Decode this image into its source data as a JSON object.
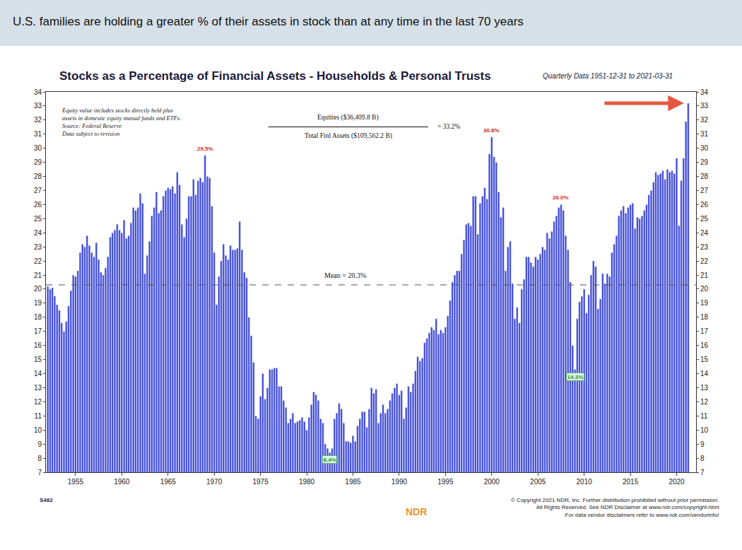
{
  "banner": "U.S. families are holding a greater % of their assets in stock than at any time in the last 70 years",
  "chart_data": {
    "type": "bar",
    "title": "Stocks as a Percentage of Financial Assets - Households & Personal Trusts",
    "subtitle": "Quarterly Data 1951-12-31 to 2021-03-31",
    "notes": [
      "Equity value includes stocks directly held plus",
      "assets in domestic equity mutual funds and ETFs.",
      "Source: Federal Reserve",
      "Data subject to revision"
    ],
    "fraction": {
      "numerator": "Equities ($36,409.8 B)",
      "denominator": "Total Finl Assets ($109,562.2 B)",
      "result": "= 33.2%"
    },
    "mean": {
      "value": 20.3,
      "label": "Mean = 20.3%"
    },
    "annotations": [
      {
        "text": "29.5%",
        "x": 1969.0,
        "y": 29.5,
        "color": "#d0281c"
      },
      {
        "text": "8.4%",
        "x": 1982.5,
        "y": 8.4,
        "color": "#1a9a3a"
      },
      {
        "text": "30.8%",
        "x": 2000.0,
        "y": 30.8,
        "color": "#d0281c"
      },
      {
        "text": "26.0%",
        "x": 2007.5,
        "y": 26.0,
        "color": "#d0281c"
      },
      {
        "text": "14.3%",
        "x": 2009.0,
        "y": 14.3,
        "color": "#1a9a3a"
      }
    ],
    "footer": [
      "© Copyright 2021 NDR, Inc. Further distribution prohibited without prior permission.",
      "All Rights Reserved. See NDR Disclaimer at www.ndr.com/copyright.html",
      "For data vendor disclaimers refer to www.ndr.com/vendorinfo/"
    ],
    "chart_id": "S482",
    "logo": "NDR",
    "color": "#3c48d8",
    "grid": false,
    "xlim": [
      1951.8,
      2022.1
    ],
    "xticks": [
      1955,
      1960,
      1965,
      1970,
      1975,
      1980,
      1985,
      1990,
      1995,
      2000,
      2005,
      2010,
      2015,
      2020
    ],
    "ylim": [
      7,
      34
    ],
    "yticks": [
      7,
      8,
      9,
      10,
      11,
      12,
      13,
      14,
      15,
      16,
      17,
      18,
      19,
      20,
      21,
      22,
      23,
      24,
      25,
      26,
      27,
      28,
      29,
      30,
      31,
      32,
      33,
      34
    ],
    "x": [
      1952,
      1952.25,
      1952.5,
      1952.75,
      1953,
      1953.25,
      1953.5,
      1953.75,
      1954,
      1954.25,
      1954.5,
      1954.75,
      1955,
      1955.25,
      1955.5,
      1955.75,
      1956,
      1956.25,
      1956.5,
      1956.75,
      1957,
      1957.25,
      1957.5,
      1957.75,
      1958,
      1958.25,
      1958.5,
      1958.75,
      1959,
      1959.25,
      1959.5,
      1959.75,
      1960,
      1960.25,
      1960.5,
      1960.75,
      1961,
      1961.25,
      1961.5,
      1961.75,
      1962,
      1962.25,
      1962.5,
      1962.75,
      1963,
      1963.25,
      1963.5,
      1963.75,
      1964,
      1964.25,
      1964.5,
      1964.75,
      1965,
      1965.25,
      1965.5,
      1965.75,
      1966,
      1966.25,
      1966.5,
      1966.75,
      1967,
      1967.25,
      1967.5,
      1967.75,
      1968,
      1968.25,
      1968.5,
      1968.75,
      1969,
      1969.25,
      1969.5,
      1969.75,
      1970,
      1970.25,
      1970.5,
      1970.75,
      1971,
      1971.25,
      1971.5,
      1971.75,
      1972,
      1972.25,
      1972.5,
      1972.75,
      1973,
      1973.25,
      1973.5,
      1973.75,
      1974,
      1974.25,
      1974.5,
      1974.75,
      1975,
      1975.25,
      1975.5,
      1975.75,
      1976,
      1976.25,
      1976.5,
      1976.75,
      1977,
      1977.25,
      1977.5,
      1977.75,
      1978,
      1978.25,
      1978.5,
      1978.75,
      1979,
      1979.25,
      1979.5,
      1979.75,
      1980,
      1980.25,
      1980.5,
      1980.75,
      1981,
      1981.25,
      1981.5,
      1981.75,
      1982,
      1982.25,
      1982.5,
      1982.75,
      1983,
      1983.25,
      1983.5,
      1983.75,
      1984,
      1984.25,
      1984.5,
      1984.75,
      1985,
      1985.25,
      1985.5,
      1985.75,
      1986,
      1986.25,
      1986.5,
      1986.75,
      1987,
      1987.25,
      1987.5,
      1987.75,
      1988,
      1988.25,
      1988.5,
      1988.75,
      1989,
      1989.25,
      1989.5,
      1989.75,
      1990,
      1990.25,
      1990.5,
      1990.75,
      1991,
      1991.25,
      1991.5,
      1991.75,
      1992,
      1992.25,
      1992.5,
      1992.75,
      1993,
      1993.25,
      1993.5,
      1993.75,
      1994,
      1994.25,
      1994.5,
      1994.75,
      1995,
      1995.25,
      1995.5,
      1995.75,
      1996,
      1996.25,
      1996.5,
      1996.75,
      1997,
      1997.25,
      1997.5,
      1997.75,
      1998,
      1998.25,
      1998.5,
      1998.75,
      1999,
      1999.25,
      1999.5,
      1999.75,
      2000,
      2000.25,
      2000.5,
      2000.75,
      2001,
      2001.25,
      2001.5,
      2001.75,
      2002,
      2002.25,
      2002.5,
      2002.75,
      2003,
      2003.25,
      2003.5,
      2003.75,
      2004,
      2004.25,
      2004.5,
      2004.75,
      2005,
      2005.25,
      2005.5,
      2005.75,
      2006,
      2006.25,
      2006.5,
      2006.75,
      2007,
      2007.25,
      2007.5,
      2007.75,
      2008,
      2008.25,
      2008.5,
      2008.75,
      2009,
      2009.25,
      2009.5,
      2009.75,
      2010,
      2010.25,
      2010.5,
      2010.75,
      2011,
      2011.25,
      2011.5,
      2011.75,
      2012,
      2012.25,
      2012.5,
      2012.75,
      2013,
      2013.25,
      2013.5,
      2013.75,
      2014,
      2014.25,
      2014.5,
      2014.75,
      2015,
      2015.25,
      2015.5,
      2015.75,
      2016,
      2016.25,
      2016.5,
      2016.75,
      2017,
      2017.25,
      2017.5,
      2017.75,
      2018,
      2018.25,
      2018.5,
      2018.75,
      2019,
      2019.25,
      2019.5,
      2019.75,
      2020,
      2020.25,
      2020.5,
      2020.75,
      2021,
      2021.25
    ],
    "values": [
      20.2,
      20.0,
      20.1,
      19.5,
      18.9,
      18.5,
      17.6,
      17.0,
      17.7,
      18.8,
      19.9,
      21.0,
      20.9,
      21.3,
      22.6,
      23.2,
      23.0,
      23.8,
      23.1,
      22.6,
      22.3,
      23.3,
      22.1,
      21.2,
      21.0,
      21.5,
      22.3,
      23.7,
      24.0,
      24.2,
      24.6,
      24.2,
      24.0,
      24.9,
      23.6,
      23.8,
      24.7,
      25.8,
      25.6,
      25.8,
      26.8,
      26.1,
      21.1,
      22.4,
      23.4,
      25.2,
      25.8,
      26.9,
      25.4,
      25.6,
      26.6,
      27.0,
      27.2,
      27.1,
      27.3,
      26.8,
      28.3,
      27.4,
      24.6,
      23.7,
      25.0,
      26.6,
      26.6,
      27.8,
      26.7,
      27.7,
      27.9,
      27.6,
      29.5,
      28.0,
      27.9,
      25.9,
      22.6,
      18.9,
      20.9,
      22.0,
      23.2,
      22.4,
      22.1,
      23.1,
      22.8,
      22.8,
      22.9,
      24.8,
      22.8,
      21.2,
      20.8,
      18.0,
      16.7,
      14.8,
      11.0,
      10.8,
      12.4,
      14.0,
      12.2,
      13.0,
      14.3,
      14.3,
      14.4,
      14.4,
      13.1,
      13.1,
      12.1,
      11.6,
      10.5,
      10.8,
      11.2,
      10.5,
      10.6,
      10.7,
      10.9,
      10.6,
      10.0,
      10.9,
      11.8,
      12.7,
      12.5,
      12.1,
      10.8,
      10.5,
      9.0,
      8.7,
      8.4,
      8.7,
      10.8,
      11.2,
      11.9,
      11.5,
      10.5,
      9.2,
      9.2,
      9.1,
      9.6,
      9.2,
      10.3,
      10.8,
      11.3,
      11.3,
      10.2,
      11.5,
      13.0,
      12.6,
      12.9,
      10.5,
      11.2,
      11.8,
      11.2,
      11.5,
      12.1,
      12.6,
      13.0,
      13.3,
      12.5,
      12.8,
      10.8,
      11.6,
      13.1,
      12.7,
      13.3,
      14.2,
      15.2,
      14.9,
      15.1,
      16.2,
      16.5,
      16.9,
      17.3,
      17.1,
      17.9,
      16.8,
      17.1,
      16.9,
      17.3,
      18.1,
      19.2,
      20.5,
      21.0,
      21.3,
      21.3,
      22.5,
      23.5,
      24.6,
      24.7,
      24.5,
      26.6,
      26.6,
      23.9,
      26.1,
      26.6,
      27.2,
      26.4,
      29.6,
      30.8,
      29.4,
      29.0,
      26.9,
      25.1,
      25.8,
      21.3,
      23.0,
      23.4,
      20.4,
      17.9,
      18.7,
      17.6,
      20.0,
      20.7,
      22.3,
      22.3,
      21.9,
      21.6,
      22.3,
      22.1,
      22.5,
      23.0,
      22.8,
      24.0,
      23.6,
      24.1,
      24.8,
      25.2,
      25.8,
      26.0,
      25.6,
      23.8,
      22.8,
      20.5,
      16.0,
      14.3,
      17.9,
      19.1,
      19.5,
      20.0,
      18.3,
      19.6,
      21.0,
      22.0,
      21.6,
      18.6,
      19.3,
      21.1,
      20.4,
      21.1,
      20.9,
      22.6,
      23.2,
      23.8,
      25.2,
      25.6,
      25.9,
      25.4,
      25.8,
      26.0,
      26.1,
      24.3,
      25.1,
      25.0,
      25.2,
      25.6,
      26.0,
      26.7,
      27.0,
      27.6,
      28.3,
      28.1,
      28.2,
      28.4,
      27.8,
      28.5,
      28.3,
      28.4,
      28.2,
      29.3,
      24.5,
      27.7,
      29.3,
      31.9,
      33.2
    ]
  }
}
